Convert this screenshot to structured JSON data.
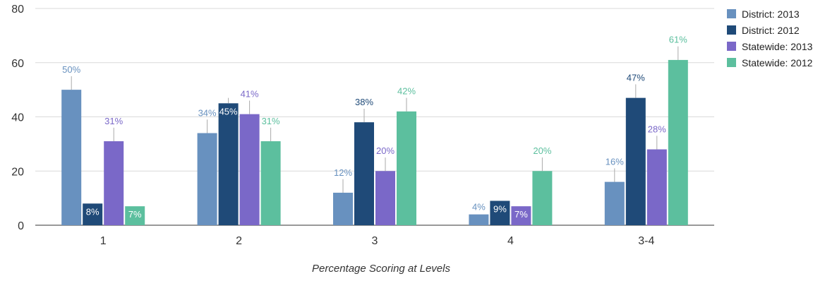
{
  "chart_data": {
    "type": "bar",
    "categories": [
      "1",
      "2",
      "3",
      "4",
      "3-4"
    ],
    "series": [
      {
        "name": "District: 2013",
        "color": "#6891bf",
        "values": [
          50,
          34,
          12,
          4,
          16
        ],
        "labels": [
          "50%",
          "34%",
          "12%",
          "4%",
          "16%"
        ],
        "errors": [
          5,
          5,
          5,
          0,
          5
        ]
      },
      {
        "name": "District: 2012",
        "color": "#1f4a78",
        "values": [
          8,
          45,
          38,
          9,
          47
        ],
        "labels": [
          "8%",
          "45%",
          "38%",
          "9%",
          "47%"
        ],
        "errors": [
          0,
          2,
          5,
          0,
          5
        ]
      },
      {
        "name": "Statewide: 2013",
        "color": "#7a68c8",
        "values": [
          31,
          41,
          20,
          7,
          28
        ],
        "labels": [
          "31%",
          "41%",
          "20%",
          "7%",
          "28%"
        ],
        "errors": [
          5,
          5,
          5,
          0,
          5
        ]
      },
      {
        "name": "Statewide: 2012",
        "color": "#5cbf9e",
        "values": [
          7,
          31,
          42,
          20,
          61
        ],
        "labels": [
          "7%",
          "31%",
          "42%",
          "20%",
          "61%"
        ],
        "errors": [
          0,
          5,
          5,
          5,
          5
        ]
      }
    ],
    "yticks": [
      0,
      20,
      40,
      60,
      80
    ],
    "ylim": [
      0,
      80
    ],
    "xlabel": "Percentage Scoring at Levels",
    "grid": true,
    "legend_position": "right"
  }
}
